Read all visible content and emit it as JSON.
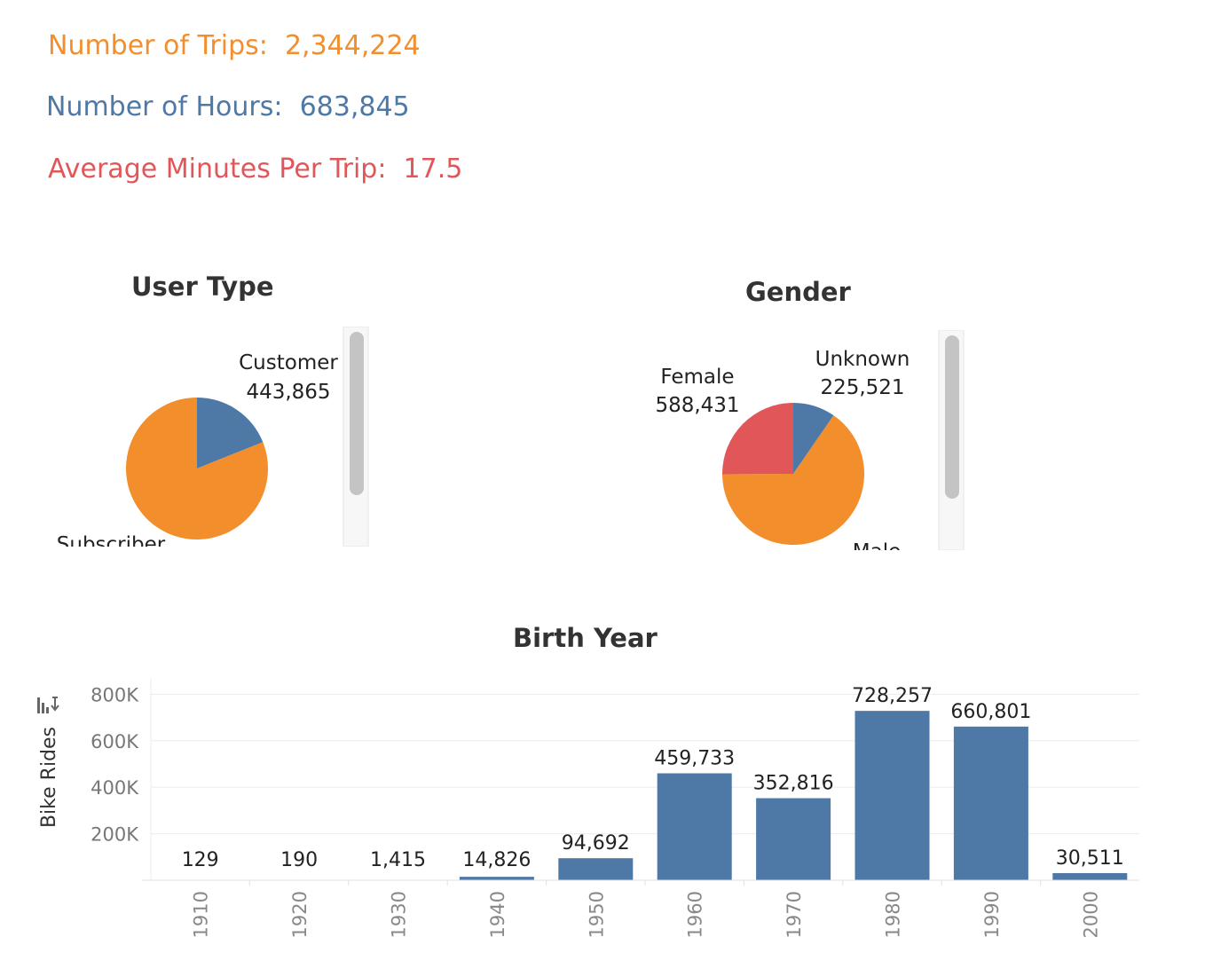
{
  "kpis": {
    "trips_label": "Number of Trips:",
    "trips_value": "2,344,224",
    "hours_label": "Number of Hours:",
    "hours_value": "683,845",
    "avg_label": "Average Minutes Per Trip:",
    "avg_value": "17.5"
  },
  "colors": {
    "orange": "#f28e2b",
    "blue": "#4e79a7",
    "red": "#e15759"
  },
  "chart_data": [
    {
      "type": "pie",
      "title": "User Type",
      "slices": [
        {
          "name": "Customer",
          "value": 443865,
          "label": "443,865",
          "color": "#4e79a7"
        },
        {
          "name": "Subscriber",
          "value": 1900359,
          "label": "",
          "color": "#f28e2b"
        }
      ]
    },
    {
      "type": "pie",
      "title": "Gender",
      "slices": [
        {
          "name": "Unknown",
          "value": 225521,
          "label": "225,521",
          "color": "#4e79a7"
        },
        {
          "name": "Male",
          "value": 1530272,
          "label": "",
          "color": "#f28e2b"
        },
        {
          "name": "Female",
          "value": 588431,
          "label": "588,431",
          "color": "#e15759"
        }
      ]
    },
    {
      "type": "bar",
      "title": "Birth Year",
      "ylabel": "Bike Rides",
      "categories": [
        "1910",
        "1920",
        "1930",
        "1940",
        "1950",
        "1960",
        "1970",
        "1980",
        "1990",
        "2000"
      ],
      "values": [
        129,
        190,
        1415,
        14826,
        94692,
        459733,
        352816,
        728257,
        660801,
        30511
      ],
      "value_labels": [
        "129",
        "190",
        "1,415",
        "14,826",
        "94,692",
        "459,733",
        "352,816",
        "728,257",
        "660,801",
        "30,511"
      ],
      "yticks": [
        200000,
        400000,
        600000,
        800000
      ],
      "ytick_labels": [
        "200K",
        "400K",
        "600K",
        "800K"
      ],
      "ylim": [
        0,
        870000
      ],
      "grid": true,
      "color": "#4e79a7"
    }
  ]
}
